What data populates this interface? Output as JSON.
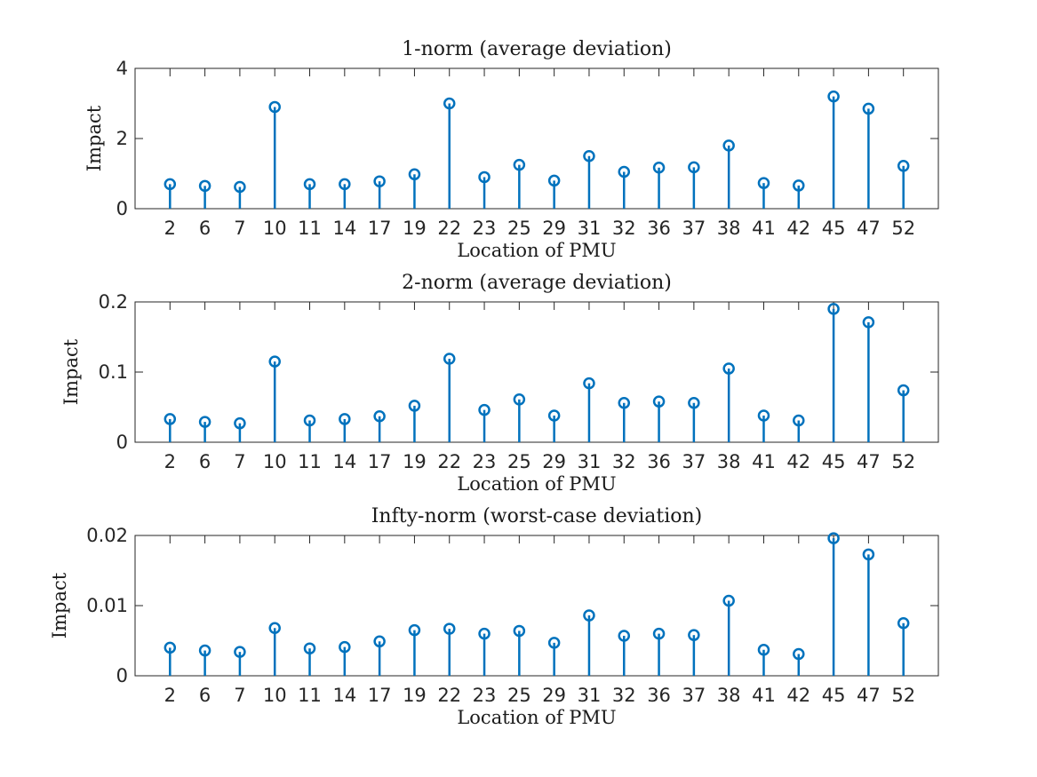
{
  "chart_data": [
    {
      "type": "stem",
      "title": "1-norm (average deviation)",
      "xlabel": "Location of PMU",
      "ylabel": "Impact",
      "categories": [
        "2",
        "6",
        "7",
        "10",
        "11",
        "14",
        "17",
        "19",
        "22",
        "23",
        "25",
        "29",
        "31",
        "32",
        "36",
        "37",
        "38",
        "41",
        "42",
        "45",
        "47",
        "52"
      ],
      "values": [
        0.7,
        0.65,
        0.62,
        2.9,
        0.7,
        0.7,
        0.78,
        0.98,
        3.0,
        0.9,
        1.25,
        0.8,
        1.5,
        1.05,
        1.17,
        1.18,
        1.8,
        0.73,
        0.66,
        3.2,
        2.85,
        1.22
      ],
      "ylim": [
        0,
        4
      ],
      "yticks": [
        0,
        2,
        4
      ],
      "ytick_labels": [
        "0",
        "2",
        "4"
      ],
      "color": "#0072BD"
    },
    {
      "type": "stem",
      "title": "2-norm (average deviation)",
      "xlabel": "Location of PMU",
      "ylabel": "Impact",
      "categories": [
        "2",
        "6",
        "7",
        "10",
        "11",
        "14",
        "17",
        "19",
        "22",
        "23",
        "25",
        "29",
        "31",
        "32",
        "36",
        "37",
        "38",
        "41",
        "42",
        "45",
        "47",
        "52"
      ],
      "values": [
        0.033,
        0.029,
        0.027,
        0.115,
        0.031,
        0.033,
        0.037,
        0.052,
        0.119,
        0.046,
        0.061,
        0.038,
        0.084,
        0.056,
        0.058,
        0.056,
        0.105,
        0.038,
        0.031,
        0.19,
        0.171,
        0.074
      ],
      "ylim": [
        0,
        0.2
      ],
      "yticks": [
        0,
        0.1,
        0.2
      ],
      "ytick_labels": [
        "0",
        "0.1",
        "0.2"
      ],
      "color": "#0072BD"
    },
    {
      "type": "stem",
      "title": "Infty-norm (worst-case deviation)",
      "xlabel": "Location of PMU",
      "ylabel": "Impact",
      "categories": [
        "2",
        "6",
        "7",
        "10",
        "11",
        "14",
        "17",
        "19",
        "22",
        "23",
        "25",
        "29",
        "31",
        "32",
        "36",
        "37",
        "38",
        "41",
        "42",
        "45",
        "47",
        "52"
      ],
      "values": [
        0.004,
        0.0036,
        0.0034,
        0.0068,
        0.0039,
        0.0041,
        0.0049,
        0.0065,
        0.0067,
        0.006,
        0.0064,
        0.0047,
        0.0086,
        0.0057,
        0.006,
        0.0058,
        0.0107,
        0.0037,
        0.0031,
        0.0196,
        0.0173,
        0.0075
      ],
      "ylim": [
        0,
        0.02
      ],
      "yticks": [
        0,
        0.01,
        0.02
      ],
      "ytick_labels": [
        "0",
        "0.01",
        "0.02"
      ],
      "color": "#0072BD"
    }
  ]
}
